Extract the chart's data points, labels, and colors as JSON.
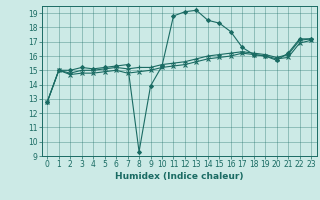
{
  "title": "",
  "xlabel": "Humidex (Indice chaleur)",
  "ylabel": "",
  "bg_color": "#cceae6",
  "line_color": "#1a6b63",
  "xlim": [
    -0.5,
    23.5
  ],
  "ylim": [
    9,
    19.5
  ],
  "yticks": [
    9,
    10,
    11,
    12,
    13,
    14,
    15,
    16,
    17,
    18,
    19
  ],
  "xticks": [
    0,
    1,
    2,
    3,
    4,
    5,
    6,
    7,
    8,
    9,
    10,
    11,
    12,
    13,
    14,
    15,
    16,
    17,
    18,
    19,
    20,
    21,
    22,
    23
  ],
  "series": [
    {
      "x": [
        0,
        1,
        2,
        3,
        4,
        5,
        6,
        7,
        8,
        9,
        10,
        11,
        12,
        13,
        14,
        15,
        16,
        17,
        18,
        19,
        20,
        21,
        22,
        23
      ],
      "y": [
        12.8,
        15.0,
        15.0,
        15.2,
        15.1,
        15.2,
        15.3,
        15.4,
        9.3,
        13.9,
        15.3,
        18.8,
        19.1,
        19.2,
        18.5,
        18.3,
        17.7,
        16.6,
        16.1,
        16.0,
        15.7,
        16.2,
        17.2,
        17.2
      ],
      "marker": "D",
      "markersize": 2.0
    },
    {
      "x": [
        0,
        1,
        2,
        3,
        4,
        5,
        6,
        7,
        8,
        9,
        10,
        11,
        12,
        13,
        14,
        15,
        16,
        17,
        18,
        19,
        20,
        21,
        22,
        23
      ],
      "y": [
        12.8,
        15.0,
        14.8,
        15.0,
        15.0,
        15.1,
        15.2,
        15.1,
        15.2,
        15.2,
        15.4,
        15.5,
        15.6,
        15.8,
        16.0,
        16.1,
        16.2,
        16.3,
        16.2,
        16.1,
        15.9,
        16.1,
        17.1,
        17.2
      ],
      "marker": "+",
      "markersize": 3.5
    },
    {
      "x": [
        0,
        1,
        2,
        3,
        4,
        5,
        6,
        7,
        8,
        9,
        10,
        11,
        12,
        13,
        14,
        15,
        16,
        17,
        18,
        19,
        20,
        21,
        22,
        23
      ],
      "y": [
        12.8,
        15.0,
        14.7,
        14.8,
        14.8,
        14.9,
        15.0,
        14.8,
        14.9,
        15.0,
        15.2,
        15.3,
        15.4,
        15.6,
        15.8,
        15.9,
        16.0,
        16.2,
        16.1,
        16.0,
        15.8,
        15.9,
        16.9,
        17.1
      ],
      "marker": "x",
      "markersize": 3.0
    }
  ]
}
